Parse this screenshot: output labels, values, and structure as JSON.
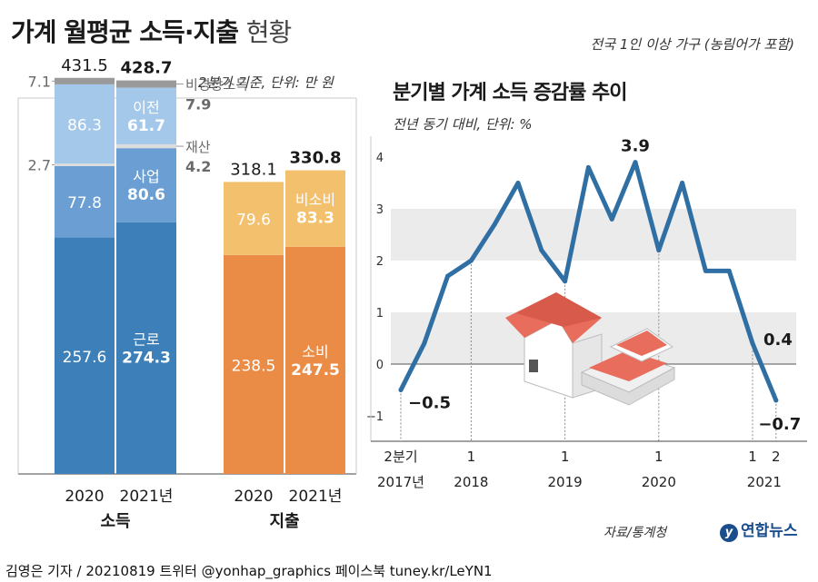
{
  "header": {
    "title_bold": "가계 월평균 소득·지출",
    "title_light": "현황",
    "note_top_right": "전국 1인 이상 가구 (농림어가 포함)"
  },
  "bar_section": {
    "unit_note": "2분기 기준, 단위: 만 원"
  },
  "line_section": {
    "title": "분기별 가계 소득 증감률 추이",
    "unit_note": "전년 동기 대비, 단위: %"
  },
  "source": "자료/통계청",
  "logo_text": "연합뉴스",
  "footer": "김영은 기자 / 20210819  트위터 @yonhap_graphics  페이스북 tuney.kr/LeYN1",
  "chart_data": [
    {
      "type": "bar",
      "stacked": true,
      "title": "가계 월평균 소득·지출 현황",
      "unit": "만 원",
      "groups": [
        {
          "name": "소득",
          "categories": [
            "2020",
            "2021년"
          ],
          "totals": [
            "431.5",
            "428.7"
          ],
          "series": [
            {
              "name": "근로",
              "values": [
                257.6,
                274.3
              ],
              "labels": [
                "257.6",
                "274.3"
              ],
              "color": "#3d7fb9"
            },
            {
              "name": "사업",
              "values": [
                77.8,
                80.6
              ],
              "labels": [
                "77.8",
                "80.6"
              ],
              "color": "#6b9fd3"
            },
            {
              "name": "재산",
              "values": [
                2.7,
                4.2
              ],
              "labels": [
                "2.7",
                "4.2"
              ],
              "color": "#dcdcdc"
            },
            {
              "name": "이전",
              "values": [
                86.3,
                61.7
              ],
              "labels": [
                "86.3",
                "61.7"
              ],
              "color": "#a4c8ea"
            },
            {
              "name": "비경상소득",
              "values": [
                7.1,
                7.9
              ],
              "labels": [
                "7.1",
                "7.9"
              ],
              "color": "#9a9a9a"
            }
          ]
        },
        {
          "name": "지출",
          "categories": [
            "2020",
            "2021년"
          ],
          "totals": [
            "318.1",
            "330.8"
          ],
          "series": [
            {
              "name": "소비",
              "values": [
                238.5,
                247.5
              ],
              "labels": [
                "238.5",
                "247.5"
              ],
              "color": "#ea8c45"
            },
            {
              "name": "비소비",
              "values": [
                79.6,
                83.3
              ],
              "labels": [
                "79.6",
                "83.3"
              ],
              "color": "#f3c06e"
            }
          ]
        }
      ]
    },
    {
      "type": "line",
      "title": "분기별 가계 소득 증감률 추이",
      "unit": "%",
      "ylim": [
        -1,
        4
      ],
      "yticks": [
        "−1",
        "0",
        "1",
        "2",
        "3",
        "4"
      ],
      "grid": "alternating bands",
      "color": "#2f6fa3",
      "x_labels": [
        {
          "index": 0,
          "quarter": "2분기",
          "year": "2017년"
        },
        {
          "index": 3,
          "quarter": "1",
          "year": "2018"
        },
        {
          "index": 7,
          "quarter": "1",
          "year": "2019"
        },
        {
          "index": 11,
          "quarter": "1",
          "year": "2020"
        },
        {
          "index": 15,
          "quarter": "1",
          "year": ""
        },
        {
          "index": 16,
          "quarter": "2",
          "year": ""
        }
      ],
      "x_axis_year_2021": "2021",
      "values": [
        -0.5,
        0.4,
        1.7,
        2.0,
        2.7,
        3.5,
        2.2,
        1.6,
        3.8,
        2.8,
        3.9,
        2.2,
        3.5,
        1.8,
        1.8,
        0.4,
        -0.7
      ],
      "point_labels": [
        {
          "index": 0,
          "text": "−0.5"
        },
        {
          "index": 10,
          "text": "3.9"
        },
        {
          "index": 15,
          "text": "0.4"
        },
        {
          "index": 16,
          "text": "−0.7"
        }
      ]
    }
  ]
}
